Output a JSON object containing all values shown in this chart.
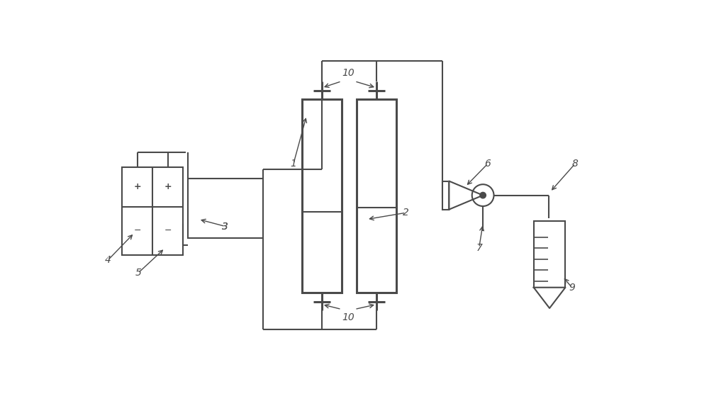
{
  "bg_color": "#ffffff",
  "line_color": "#4a4a4a",
  "lw": 1.5,
  "lw_thick": 2.2,
  "fig_width": 10.0,
  "fig_height": 5.9,
  "xlim": [
    0,
    10
  ],
  "ylim": [
    0,
    5.9
  ]
}
